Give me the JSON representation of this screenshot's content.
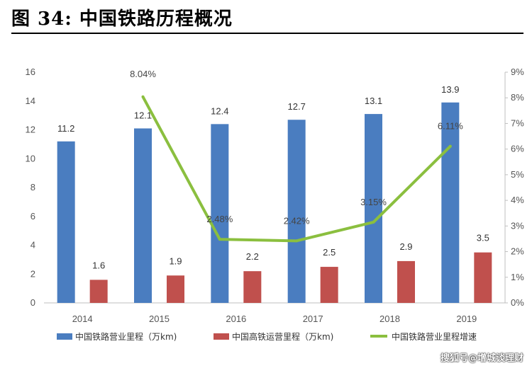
{
  "figure_title": "图 34:  中国铁路历程概况",
  "watermark": "搜狐号@增城谈理财",
  "colors": {
    "bar1": "#4a7dc0",
    "bar2": "#c0504d",
    "line": "#8bbf3f"
  },
  "chart_data": {
    "type": "bar",
    "categories": [
      "2014",
      "2015",
      "2016",
      "2017",
      "2018",
      "2019"
    ],
    "series": [
      {
        "name": "中国铁路营业里程（万km)",
        "type": "bar",
        "axis": "left",
        "values": [
          11.2,
          12.1,
          12.4,
          12.7,
          13.1,
          13.9
        ],
        "labels": [
          "11.2",
          "12.1",
          "12.4",
          "12.7",
          "13.1",
          "13.9"
        ]
      },
      {
        "name": "中国高铁运营里程（万km)",
        "type": "bar",
        "axis": "left",
        "values": [
          1.6,
          1.9,
          2.2,
          2.5,
          2.9,
          3.5
        ],
        "labels": [
          "1.6",
          "1.9",
          "2.2",
          "2.5",
          "2.9",
          "3.5"
        ]
      },
      {
        "name": "中国铁路营业里程增速",
        "type": "line",
        "axis": "right",
        "points": [
          {
            "x": "2015",
            "y": 8.04,
            "label": "8.04%"
          },
          {
            "x": "2016",
            "y": 2.48,
            "label": "2.48%"
          },
          {
            "x": "2017",
            "y": 2.42,
            "label": "2.42%"
          },
          {
            "x": "2018",
            "y": 3.15,
            "label": "3.15%"
          },
          {
            "x": "2019",
            "y": 6.11,
            "label": "6.11%"
          }
        ]
      }
    ],
    "y_left": {
      "min": 0,
      "max": 16,
      "ticks": [
        "0",
        "2",
        "4",
        "6",
        "8",
        "10",
        "12",
        "14",
        "16"
      ]
    },
    "y_right": {
      "min": 0,
      "max": 9,
      "ticks": [
        "0%",
        "1%",
        "2%",
        "3%",
        "4%",
        "5%",
        "6%",
        "7%",
        "8%",
        "9%"
      ]
    },
    "grid": false,
    "legend_position": "bottom"
  }
}
